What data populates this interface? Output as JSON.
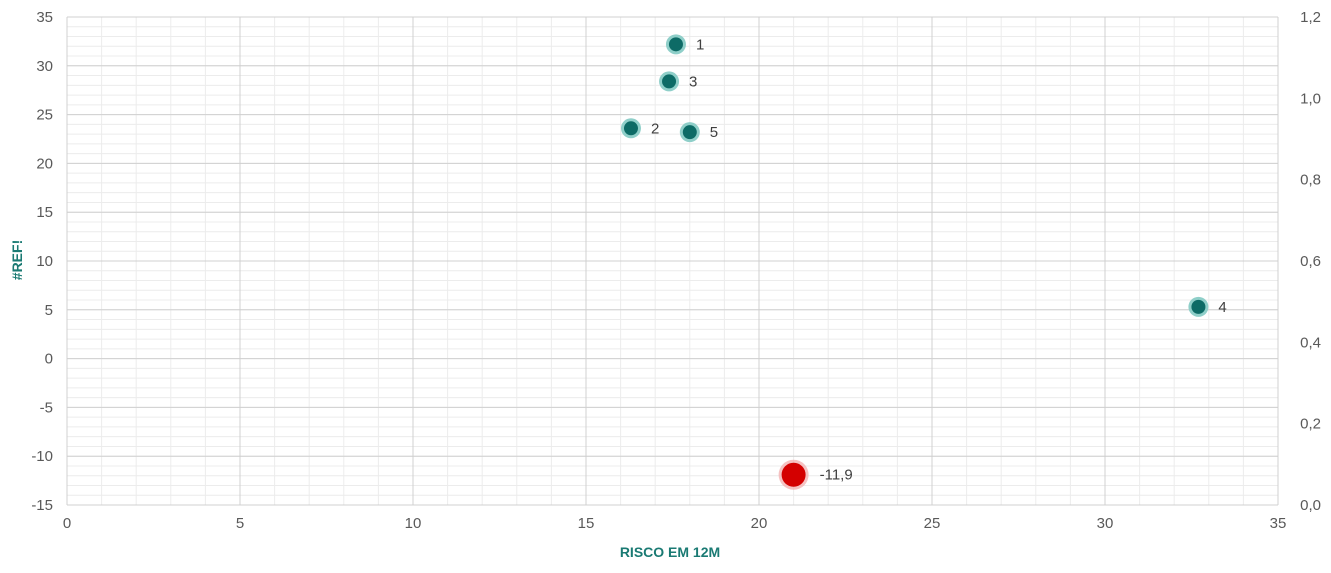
{
  "chart_data": {
    "type": "scatter",
    "title": "",
    "xlabel": "RISCO EM 12M",
    "ylabel": "#REF!",
    "xlim": [
      0,
      35
    ],
    "ylim": [
      -15,
      35
    ],
    "y2lim": [
      0.0,
      1.2
    ],
    "x_ticks": [
      "0",
      "5",
      "10",
      "15",
      "20",
      "25",
      "30",
      "35"
    ],
    "y_ticks": [
      "-15",
      "-10",
      "-5",
      "0",
      "5",
      "10",
      "15",
      "20",
      "25",
      "30",
      "35"
    ],
    "y2_ticks": [
      "0,0",
      "0,2",
      "0,4",
      "0,6",
      "0,8",
      "1,0",
      "1,2"
    ],
    "grid": true,
    "series": [
      {
        "color": "#0d6b66",
        "points": [
          {
            "label": "1",
            "x": 17.6,
            "y": 32.2
          },
          {
            "label": "3",
            "x": 17.4,
            "y": 28.4
          },
          {
            "label": "2",
            "x": 16.3,
            "y": 23.6
          },
          {
            "label": "5",
            "x": 18.0,
            "y": 23.2
          },
          {
            "label": "4",
            "x": 32.7,
            "y": 5.3
          }
        ]
      },
      {
        "color": "#d40000",
        "points": [
          {
            "label": "-11,9",
            "x": 21.0,
            "y": -11.9
          }
        ]
      }
    ]
  }
}
